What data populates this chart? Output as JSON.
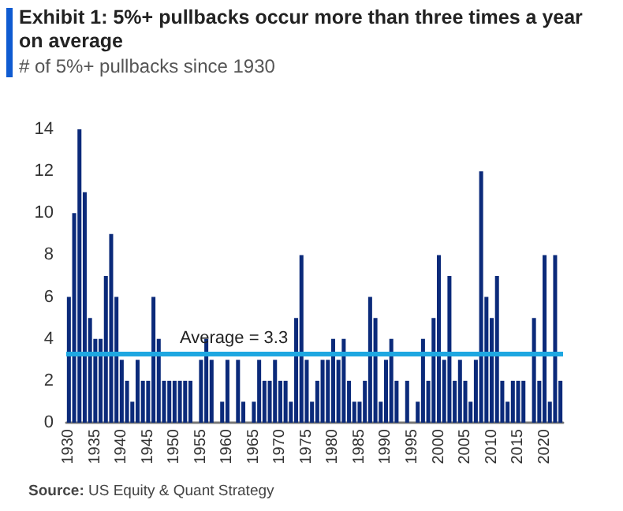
{
  "chart_data": {
    "type": "bar",
    "title": "Exhibit 1: 5%+ pullbacks occur more than three times a year on average",
    "subtitle": "# of 5%+ pullbacks since 1930",
    "annotations": [
      "Source: US Equity & Quant Strategy"
    ],
    "categories": [
      "1930",
      null,
      null,
      null,
      null,
      "1935",
      null,
      null,
      null,
      null,
      "1940",
      null,
      null,
      null,
      null,
      "1945",
      null,
      null,
      null,
      null,
      "1950",
      null,
      null,
      null,
      null,
      "1955",
      null,
      null,
      null,
      null,
      "1960",
      null,
      null,
      null,
      null,
      "1965",
      null,
      null,
      null,
      null,
      "1970",
      null,
      null,
      null,
      null,
      "1975",
      null,
      null,
      null,
      null,
      "1980",
      null,
      null,
      null,
      null,
      "1985",
      null,
      null,
      null,
      null,
      "1990",
      null,
      null,
      null,
      null,
      "1995",
      null,
      null,
      null,
      null,
      "2000",
      null,
      null,
      null,
      null,
      "2005",
      null,
      null,
      null,
      null,
      "2010",
      null,
      null,
      null,
      null,
      "2015",
      null,
      null,
      null,
      null,
      "2020",
      null,
      null,
      null
    ],
    "values": [
      6,
      10,
      14,
      11,
      5,
      4,
      4,
      7,
      9,
      6,
      3,
      2,
      1,
      3,
      2,
      2,
      6,
      4,
      2,
      2,
      2,
      2,
      2,
      2,
      0,
      3,
      4,
      3,
      0,
      1,
      3,
      0,
      3,
      1,
      0,
      1,
      3,
      2,
      2,
      3,
      2,
      2,
      1,
      5,
      8,
      3,
      1,
      2,
      3,
      3,
      4,
      3,
      4,
      2,
      1,
      1,
      2,
      6,
      5,
      1,
      3,
      4,
      2,
      0,
      2,
      0,
      1,
      4,
      2,
      5,
      8,
      3,
      7,
      2,
      3,
      2,
      1,
      3,
      12,
      6,
      5,
      7,
      2,
      1,
      2,
      2,
      2,
      0,
      5,
      2,
      8,
      1,
      8,
      2
    ],
    "color": "#0b2a7a",
    "ylim": [
      0,
      14
    ],
    "yticks": [
      0,
      2,
      4,
      6,
      8,
      10,
      12,
      14
    ],
    "ref_lines": [
      {
        "axis": "y",
        "value": 3.3,
        "label": "Average = 3.3",
        "color": "#1ea7e1"
      }
    ]
  }
}
